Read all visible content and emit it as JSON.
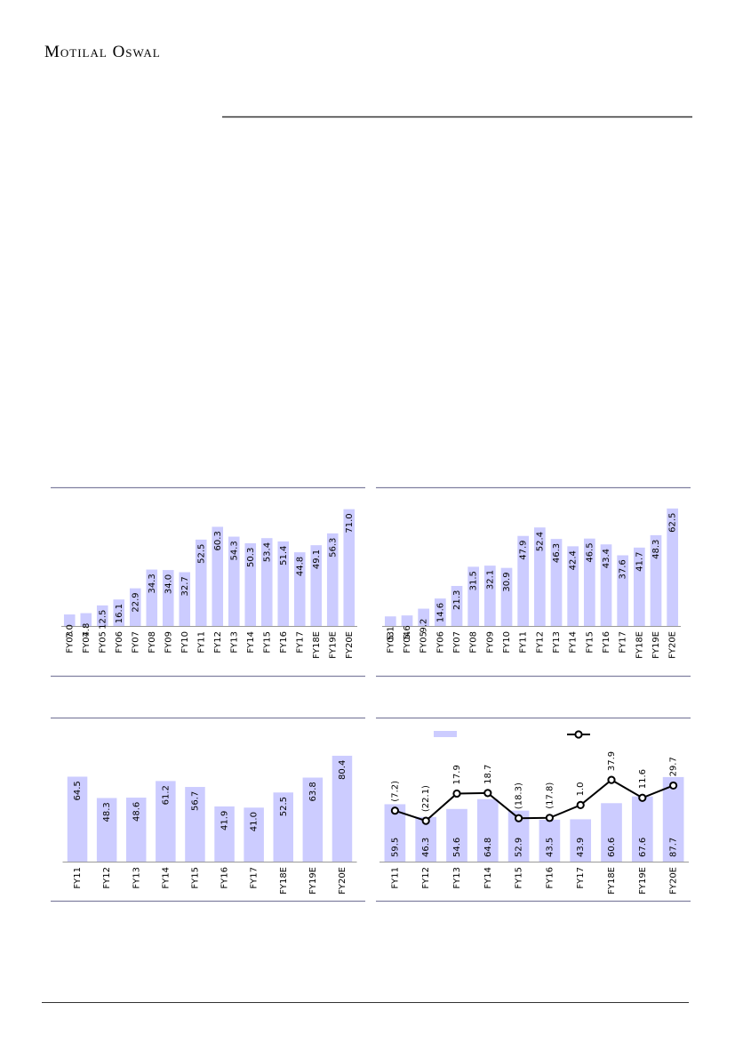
{
  "header": {
    "company": "Motilal Oswal"
  },
  "chart_data": [
    {
      "type": "bar",
      "color": "#ccccff",
      "ylim": [
        0,
        80
      ],
      "categories": [
        "FY03",
        "FY04",
        "FY05",
        "FY06",
        "FY07",
        "FY08",
        "FY09",
        "FY10",
        "FY11",
        "FY12",
        "FY13",
        "FY14",
        "FY15",
        "FY16",
        "FY17",
        "FY18E",
        "FY19E",
        "FY20E"
      ],
      "values": [
        7.0,
        7.8,
        12.5,
        16.1,
        22.9,
        34.3,
        34.0,
        32.7,
        52.5,
        60.3,
        54.3,
        50.3,
        53.4,
        51.4,
        44.8,
        49.1,
        56.3,
        71.0
      ],
      "value_labels": [
        "7.0",
        "7.8",
        "12.5",
        "16.1",
        "22.9",
        "34.3",
        "34.0",
        "32.7",
        "52.5",
        "60.3",
        "54.3",
        "50.3",
        "53.4",
        "51.4",
        "44.8",
        "49.1",
        "56.3",
        "71.0"
      ]
    },
    {
      "type": "bar",
      "color": "#ccccff",
      "ylim": [
        0,
        70
      ],
      "categories": [
        "FY03",
        "FY04",
        "FY05",
        "FY06",
        "FY07",
        "FY08",
        "FY09",
        "FY10",
        "FY11",
        "FY12",
        "FY13",
        "FY14",
        "FY15",
        "FY16",
        "FY17",
        "FY18E",
        "FY19E",
        "FY20E"
      ],
      "values": [
        5.1,
        5.6,
        9.2,
        14.6,
        21.3,
        31.5,
        32.1,
        30.9,
        47.9,
        52.4,
        46.3,
        42.4,
        46.5,
        43.4,
        37.6,
        41.7,
        48.3,
        62.5
      ],
      "value_labels": [
        "5.1",
        "5.6",
        "9.2",
        "14.6",
        "21.3",
        "31.5",
        "32.1",
        "30.9",
        "47.9",
        "52.4",
        "46.3",
        "42.4",
        "46.5",
        "43.4",
        "37.6",
        "41.7",
        "48.3",
        "62.5"
      ]
    },
    {
      "type": "bar",
      "color": "#ccccff",
      "ylim": [
        0,
        104
      ],
      "categories": [
        "FY11",
        "FY12",
        "FY13",
        "FY14",
        "FY15",
        "FY16",
        "FY17",
        "FY18E",
        "FY19E",
        "FY20E"
      ],
      "values": [
        64.5,
        48.3,
        48.6,
        61.2,
        56.7,
        41.9,
        41.0,
        52.5,
        63.8,
        80.4
      ],
      "value_labels": [
        "64.5",
        "48.3",
        "48.6",
        "61.2",
        "56.7",
        "41.9",
        "41.0",
        "52.5",
        "63.8",
        "80.4"
      ]
    },
    {
      "type": "combo",
      "ylim": [
        0,
        142
      ],
      "y2lim": [
        -82,
        119
      ],
      "legend": true,
      "categories": [
        "FY11",
        "FY12",
        "FY13",
        "FY14",
        "FY15",
        "FY16",
        "FY17",
        "FY18E",
        "FY19E",
        "FY20E"
      ],
      "series": [
        {
          "type": "bar",
          "color": "#ccccff",
          "values": [
            59.5,
            46.3,
            54.6,
            64.8,
            52.9,
            43.5,
            43.9,
            60.6,
            67.6,
            87.7
          ],
          "value_labels": [
            "59.5",
            "46.3",
            "54.6",
            "64.8",
            "52.9",
            "43.5",
            "43.9",
            "60.6",
            "67.6",
            "87.7"
          ]
        },
        {
          "type": "line",
          "color": "#000000",
          "axis": "y2",
          "values": [
            -7.2,
            -22.1,
            17.9,
            18.7,
            -18.3,
            -17.8,
            1.0,
            37.9,
            11.6,
            29.7
          ],
          "value_labels": [
            "(7.2)",
            "(22.1)",
            "17.9",
            "18.7",
            "(18.3)",
            "(17.8)",
            "1.0",
            "37.9",
            "11.6",
            "29.7"
          ]
        }
      ]
    }
  ]
}
